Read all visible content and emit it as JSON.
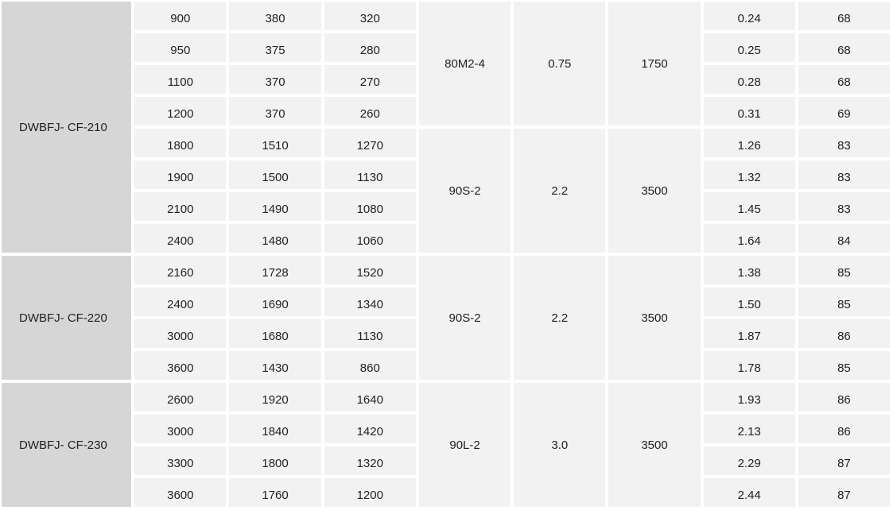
{
  "groups": [
    {
      "model": "DWBFJ- CF-210",
      "motor_groups": [
        {
          "motor": "80M2-4",
          "power": "0.75",
          "speed": "1750",
          "rows": [
            [
              "900",
              "380",
              "320",
              "0.24",
              "68"
            ],
            [
              "950",
              "375",
              "280",
              "0.25",
              "68"
            ],
            [
              "1100",
              "370",
              "270",
              "0.28",
              "68"
            ],
            [
              "1200",
              "370",
              "260",
              "0.31",
              "69"
            ]
          ]
        },
        {
          "motor": "90S-2",
          "power": "2.2",
          "speed": "3500",
          "rows": [
            [
              "1800",
              "1510",
              "1270",
              "1.26",
              "83"
            ],
            [
              "1900",
              "1500",
              "1130",
              "1.32",
              "83"
            ],
            [
              "2100",
              "1490",
              "1080",
              "1.45",
              "83"
            ],
            [
              "2400",
              "1480",
              "1060",
              "1.64",
              "84"
            ]
          ]
        }
      ]
    },
    {
      "model": "DWBFJ- CF-220",
      "motor_groups": [
        {
          "motor": "90S-2",
          "power": "2.2",
          "speed": "3500",
          "rows": [
            [
              "2160",
              "1728",
              "1520",
              "1.38",
              "85"
            ],
            [
              "2400",
              "1690",
              "1340",
              "1.50",
              "85"
            ],
            [
              "3000",
              "1680",
              "1130",
              "1.87",
              "86"
            ],
            [
              "3600",
              "1430",
              "860",
              "1.78",
              "85"
            ]
          ]
        }
      ]
    },
    {
      "model": "DWBFJ- CF-230",
      "motor_groups": [
        {
          "motor": "90L-2",
          "power": "3.0",
          "speed": "3500",
          "rows": [
            [
              "2600",
              "1920",
              "1640",
              "1.93",
              "86"
            ],
            [
              "3000",
              "1840",
              "1420",
              "2.13",
              "86"
            ],
            [
              "3300",
              "1800",
              "1320",
              "2.29",
              "87"
            ],
            [
              "3600",
              "1760",
              "1200",
              "2.44",
              "87"
            ]
          ]
        }
      ]
    }
  ]
}
